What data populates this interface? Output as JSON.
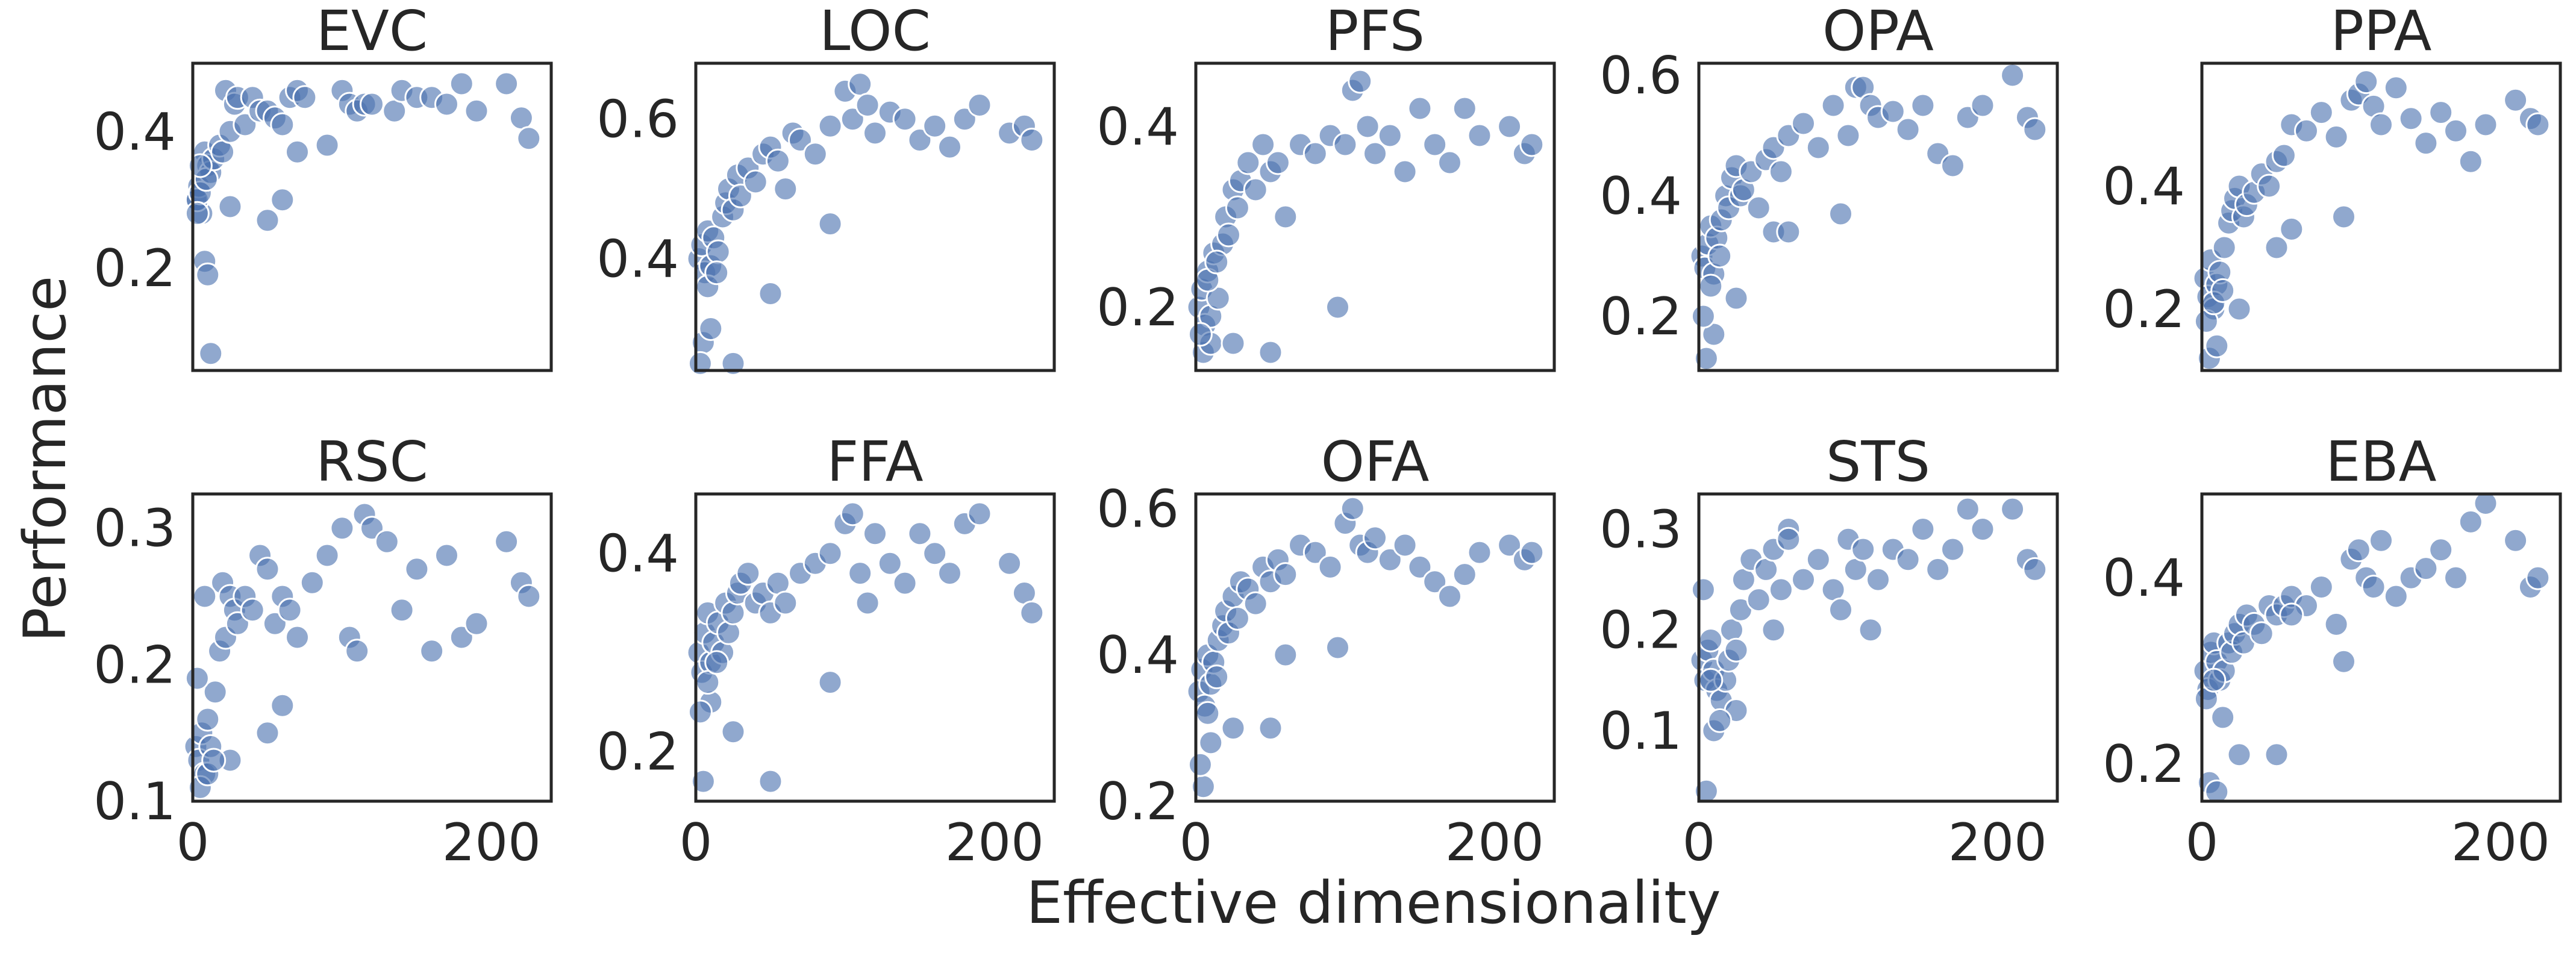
{
  "figure": {
    "xlabel": "Effective dimensionality",
    "ylabel": "Performance",
    "point_color": "#4c72b0"
  },
  "chart_data": [
    {
      "type": "scatter",
      "title": "EVC",
      "xlim": [
        0,
        240
      ],
      "ylim": [
        0.05,
        0.5
      ],
      "xticks": [
        0,
        200
      ],
      "yticks": [
        0.2,
        0.4
      ],
      "x": [
        2,
        4,
        6,
        8,
        10,
        12,
        3,
        5,
        9,
        14,
        18,
        20,
        22,
        25,
        28,
        30,
        35,
        40,
        45,
        50,
        55,
        60,
        65,
        70,
        75,
        90,
        100,
        105,
        110,
        115,
        120,
        135,
        140,
        150,
        160,
        170,
        180,
        190,
        210,
        220,
        225,
        8,
        10,
        12,
        5,
        25,
        50,
        60,
        70,
        3
      ],
      "y": [
        0.3,
        0.32,
        0.28,
        0.37,
        0.35,
        0.34,
        0.3,
        0.31,
        0.33,
        0.36,
        0.38,
        0.37,
        0.46,
        0.4,
        0.44,
        0.45,
        0.41,
        0.45,
        0.43,
        0.43,
        0.42,
        0.41,
        0.45,
        0.46,
        0.45,
        0.38,
        0.46,
        0.44,
        0.43,
        0.44,
        0.44,
        0.43,
        0.46,
        0.45,
        0.45,
        0.44,
        0.47,
        0.43,
        0.47,
        0.42,
        0.39,
        0.21,
        0.19,
        0.075,
        0.35,
        0.29,
        0.27,
        0.3,
        0.37,
        0.28
      ]
    },
    {
      "type": "scatter",
      "title": "LOC",
      "xlim": [
        0,
        240
      ],
      "ylim": [
        0.24,
        0.68
      ],
      "xticks": [
        0,
        200
      ],
      "yticks": [
        0.4,
        0.6
      ],
      "x": [
        2,
        4,
        6,
        8,
        10,
        12,
        15,
        18,
        20,
        22,
        25,
        28,
        30,
        35,
        40,
        45,
        50,
        55,
        60,
        65,
        70,
        80,
        90,
        100,
        105,
        110,
        115,
        120,
        130,
        140,
        150,
        160,
        170,
        180,
        190,
        210,
        220,
        225,
        5,
        10,
        25,
        50,
        90,
        3,
        8,
        14
      ],
      "y": [
        0.4,
        0.42,
        0.38,
        0.44,
        0.39,
        0.43,
        0.41,
        0.46,
        0.48,
        0.5,
        0.47,
        0.52,
        0.49,
        0.53,
        0.51,
        0.55,
        0.56,
        0.54,
        0.5,
        0.58,
        0.57,
        0.55,
        0.59,
        0.64,
        0.6,
        0.65,
        0.62,
        0.58,
        0.61,
        0.6,
        0.57,
        0.59,
        0.56,
        0.6,
        0.62,
        0.58,
        0.59,
        0.57,
        0.28,
        0.3,
        0.25,
        0.35,
        0.45,
        0.25,
        0.36,
        0.38
      ]
    },
    {
      "type": "scatter",
      "title": "PFS",
      "xlim": [
        0,
        240
      ],
      "ylim": [
        0.13,
        0.47
      ],
      "xticks": [
        0,
        200
      ],
      "yticks": [
        0.2,
        0.4
      ],
      "x": [
        2,
        4,
        6,
        8,
        10,
        12,
        15,
        18,
        20,
        22,
        25,
        28,
        30,
        35,
        40,
        45,
        50,
        55,
        60,
        70,
        80,
        90,
        100,
        105,
        110,
        115,
        120,
        130,
        140,
        150,
        160,
        170,
        180,
        190,
        210,
        220,
        225,
        5,
        10,
        25,
        50,
        95,
        3,
        8,
        14
      ],
      "y": [
        0.2,
        0.22,
        0.18,
        0.24,
        0.19,
        0.26,
        0.21,
        0.27,
        0.3,
        0.28,
        0.33,
        0.31,
        0.34,
        0.36,
        0.33,
        0.38,
        0.35,
        0.36,
        0.3,
        0.38,
        0.37,
        0.39,
        0.38,
        0.44,
        0.45,
        0.4,
        0.37,
        0.39,
        0.35,
        0.42,
        0.38,
        0.36,
        0.42,
        0.39,
        0.4,
        0.37,
        0.38,
        0.15,
        0.16,
        0.16,
        0.15,
        0.2,
        0.17,
        0.23,
        0.25
      ]
    },
    {
      "type": "scatter",
      "title": "OPA",
      "xlim": [
        0,
        240
      ],
      "ylim": [
        0.11,
        0.62
      ],
      "xticks": [
        0,
        200
      ],
      "yticks": [
        0.2,
        0.4,
        0.6
      ],
      "x": [
        2,
        4,
        6,
        8,
        10,
        12,
        15,
        18,
        20,
        22,
        25,
        28,
        30,
        35,
        40,
        45,
        50,
        55,
        60,
        70,
        80,
        90,
        100,
        105,
        110,
        115,
        120,
        130,
        140,
        150,
        160,
        170,
        180,
        190,
        210,
        220,
        225,
        5,
        10,
        25,
        50,
        95,
        3,
        8,
        14,
        60
      ],
      "y": [
        0.3,
        0.28,
        0.32,
        0.35,
        0.27,
        0.33,
        0.36,
        0.4,
        0.38,
        0.43,
        0.45,
        0.4,
        0.41,
        0.44,
        0.38,
        0.46,
        0.48,
        0.44,
        0.5,
        0.52,
        0.48,
        0.55,
        0.5,
        0.58,
        0.58,
        0.55,
        0.53,
        0.54,
        0.51,
        0.55,
        0.47,
        0.45,
        0.53,
        0.55,
        0.6,
        0.53,
        0.51,
        0.13,
        0.17,
        0.23,
        0.34,
        0.37,
        0.2,
        0.25,
        0.3,
        0.34
      ]
    },
    {
      "type": "scatter",
      "title": "PPA",
      "xlim": [
        0,
        240
      ],
      "ylim": [
        0.1,
        0.6
      ],
      "xticks": [
        0,
        200
      ],
      "yticks": [
        0.2,
        0.4
      ],
      "x": [
        2,
        4,
        6,
        8,
        10,
        12,
        15,
        18,
        20,
        22,
        25,
        28,
        30,
        35,
        40,
        45,
        50,
        55,
        60,
        70,
        80,
        90,
        100,
        105,
        110,
        115,
        120,
        130,
        140,
        150,
        160,
        170,
        180,
        190,
        210,
        220,
        225,
        5,
        10,
        25,
        50,
        95,
        3,
        8,
        14,
        60
      ],
      "y": [
        0.25,
        0.22,
        0.28,
        0.2,
        0.24,
        0.26,
        0.3,
        0.34,
        0.36,
        0.38,
        0.4,
        0.35,
        0.37,
        0.39,
        0.42,
        0.4,
        0.44,
        0.45,
        0.5,
        0.49,
        0.52,
        0.48,
        0.54,
        0.55,
        0.57,
        0.53,
        0.5,
        0.56,
        0.51,
        0.47,
        0.52,
        0.49,
        0.44,
        0.5,
        0.54,
        0.51,
        0.5,
        0.12,
        0.14,
        0.2,
        0.3,
        0.35,
        0.18,
        0.21,
        0.23,
        0.33
      ]
    },
    {
      "type": "scatter",
      "title": "RSC",
      "xlim": [
        0,
        240
      ],
      "ylim": [
        0.1,
        0.325
      ],
      "xticks": [
        0,
        200
      ],
      "yticks": [
        0.1,
        0.2,
        0.3
      ],
      "x": [
        2,
        4,
        6,
        8,
        10,
        12,
        15,
        18,
        20,
        22,
        25,
        28,
        30,
        35,
        40,
        45,
        50,
        55,
        60,
        65,
        70,
        80,
        90,
        100,
        105,
        110,
        115,
        120,
        130,
        140,
        150,
        160,
        170,
        180,
        190,
        210,
        220,
        225,
        5,
        10,
        25,
        50,
        60,
        3,
        8,
        14
      ],
      "y": [
        0.14,
        0.13,
        0.15,
        0.12,
        0.16,
        0.14,
        0.18,
        0.21,
        0.26,
        0.22,
        0.25,
        0.24,
        0.23,
        0.25,
        0.24,
        0.28,
        0.27,
        0.23,
        0.25,
        0.24,
        0.22,
        0.26,
        0.28,
        0.3,
        0.22,
        0.21,
        0.31,
        0.3,
        0.29,
        0.24,
        0.27,
        0.21,
        0.28,
        0.22,
        0.23,
        0.29,
        0.26,
        0.25,
        0.11,
        0.12,
        0.13,
        0.15,
        0.17,
        0.19,
        0.25,
        0.13
      ]
    },
    {
      "type": "scatter",
      "title": "FFA",
      "xlim": [
        0,
        240
      ],
      "ylim": [
        0.15,
        0.46
      ],
      "xticks": [
        0,
        200
      ],
      "yticks": [
        0.2,
        0.4
      ],
      "x": [
        2,
        4,
        6,
        8,
        10,
        12,
        15,
        18,
        20,
        22,
        25,
        28,
        30,
        35,
        40,
        45,
        50,
        55,
        60,
        70,
        80,
        90,
        100,
        105,
        110,
        115,
        120,
        130,
        140,
        150,
        160,
        170,
        180,
        190,
        210,
        220,
        225,
        5,
        10,
        25,
        50,
        90,
        3,
        8,
        14
      ],
      "y": [
        0.3,
        0.28,
        0.32,
        0.34,
        0.29,
        0.31,
        0.33,
        0.3,
        0.35,
        0.32,
        0.34,
        0.36,
        0.37,
        0.38,
        0.35,
        0.36,
        0.34,
        0.37,
        0.35,
        0.38,
        0.39,
        0.4,
        0.43,
        0.44,
        0.38,
        0.35,
        0.42,
        0.39,
        0.37,
        0.42,
        0.4,
        0.38,
        0.43,
        0.44,
        0.39,
        0.36,
        0.34,
        0.17,
        0.25,
        0.22,
        0.17,
        0.27,
        0.24,
        0.27,
        0.29
      ]
    },
    {
      "type": "scatter",
      "title": "OFA",
      "xlim": [
        0,
        240
      ],
      "ylim": [
        0.2,
        0.62
      ],
      "xticks": [
        0,
        200
      ],
      "yticks": [
        0.2,
        0.4,
        0.6
      ],
      "x": [
        2,
        4,
        6,
        8,
        10,
        12,
        15,
        18,
        20,
        22,
        25,
        28,
        30,
        35,
        40,
        45,
        50,
        55,
        60,
        70,
        80,
        90,
        100,
        105,
        110,
        115,
        120,
        130,
        140,
        150,
        160,
        170,
        180,
        190,
        210,
        220,
        225,
        5,
        10,
        25,
        50,
        95,
        3,
        8,
        14,
        60
      ],
      "y": [
        0.35,
        0.38,
        0.33,
        0.4,
        0.36,
        0.39,
        0.42,
        0.44,
        0.46,
        0.43,
        0.48,
        0.45,
        0.5,
        0.49,
        0.47,
        0.52,
        0.5,
        0.53,
        0.51,
        0.55,
        0.54,
        0.52,
        0.58,
        0.6,
        0.55,
        0.54,
        0.56,
        0.53,
        0.55,
        0.52,
        0.5,
        0.48,
        0.51,
        0.54,
        0.55,
        0.53,
        0.54,
        0.22,
        0.28,
        0.3,
        0.3,
        0.41,
        0.25,
        0.32,
        0.37,
        0.4
      ]
    },
    {
      "type": "scatter",
      "title": "STS",
      "xlim": [
        0,
        240
      ],
      "ylim": [
        0.03,
        0.335
      ],
      "xticks": [
        0,
        200
      ],
      "yticks": [
        0.1,
        0.2,
        0.3
      ],
      "x": [
        2,
        4,
        6,
        8,
        10,
        12,
        15,
        18,
        20,
        22,
        25,
        28,
        30,
        35,
        40,
        45,
        50,
        55,
        60,
        70,
        80,
        90,
        100,
        105,
        110,
        115,
        120,
        130,
        140,
        150,
        160,
        170,
        180,
        190,
        210,
        220,
        225,
        5,
        10,
        25,
        50,
        95,
        3,
        8,
        14,
        60
      ],
      "y": [
        0.17,
        0.15,
        0.18,
        0.19,
        0.16,
        0.14,
        0.13,
        0.15,
        0.17,
        0.2,
        0.18,
        0.22,
        0.25,
        0.27,
        0.23,
        0.26,
        0.28,
        0.24,
        0.3,
        0.25,
        0.27,
        0.24,
        0.29,
        0.26,
        0.28,
        0.2,
        0.25,
        0.28,
        0.27,
        0.3,
        0.26,
        0.28,
        0.32,
        0.3,
        0.32,
        0.27,
        0.26,
        0.04,
        0.1,
        0.12,
        0.2,
        0.22,
        0.24,
        0.15,
        0.11,
        0.29
      ]
    },
    {
      "type": "scatter",
      "title": "EBA",
      "xlim": [
        0,
        240
      ],
      "ylim": [
        0.16,
        0.49
      ],
      "xticks": [
        0,
        200
      ],
      "yticks": [
        0.2,
        0.4
      ],
      "x": [
        2,
        4,
        6,
        8,
        10,
        12,
        15,
        18,
        20,
        22,
        25,
        28,
        30,
        35,
        40,
        45,
        50,
        55,
        60,
        70,
        80,
        90,
        100,
        105,
        110,
        115,
        120,
        130,
        140,
        150,
        160,
        170,
        180,
        190,
        210,
        220,
        225,
        5,
        10,
        25,
        50,
        95,
        3,
        8,
        14,
        60
      ],
      "y": [
        0.3,
        0.28,
        0.32,
        0.33,
        0.31,
        0.29,
        0.3,
        0.33,
        0.32,
        0.34,
        0.35,
        0.33,
        0.36,
        0.35,
        0.34,
        0.37,
        0.36,
        0.37,
        0.38,
        0.37,
        0.39,
        0.35,
        0.42,
        0.43,
        0.4,
        0.39,
        0.44,
        0.38,
        0.4,
        0.41,
        0.43,
        0.4,
        0.46,
        0.48,
        0.44,
        0.39,
        0.4,
        0.18,
        0.17,
        0.21,
        0.21,
        0.31,
        0.27,
        0.29,
        0.25,
        0.36
      ]
    }
  ]
}
